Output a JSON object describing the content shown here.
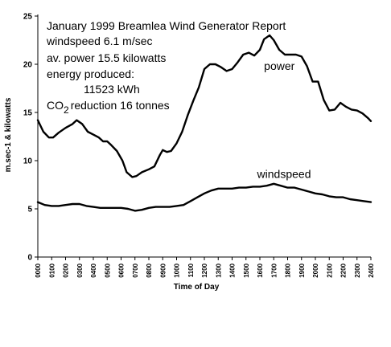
{
  "chart_data": {
    "type": "line",
    "title": "January 1999 Breamlea Wind Generator Report",
    "annotations": [
      "windspeed 6.1 m/sec",
      "av. power 15.5 kilowatts",
      "energy produced:",
      "11523 kWh"
    ],
    "co2_note": {
      "prefix": "CO",
      "subscript": "2",
      "suffix": "reduction 16 tonnes"
    },
    "xlabel": "Time of Day",
    "ylabel": "m.sec-1 & kilowatts",
    "ylim": [
      0,
      25
    ],
    "y_ticks": [
      0,
      5,
      10,
      15,
      20,
      25
    ],
    "x_ticks": [
      "0000",
      "0100",
      "0200",
      "0300",
      "0400",
      "0500",
      "0600",
      "0700",
      "0800",
      "0900",
      "1000",
      "1100",
      "1200",
      "1300",
      "1400",
      "1500",
      "1600",
      "1700",
      "1800",
      "1900",
      "2000",
      "2100",
      "2200",
      "2300",
      "2400"
    ],
    "grid": false,
    "series": [
      {
        "name": "power",
        "points": [
          [
            0,
            14.2
          ],
          [
            0.4,
            13.0
          ],
          [
            0.8,
            12.4
          ],
          [
            1.1,
            12.4
          ],
          [
            1.5,
            12.9
          ],
          [
            2.0,
            13.4
          ],
          [
            2.5,
            13.8
          ],
          [
            2.8,
            14.2
          ],
          [
            3.2,
            13.8
          ],
          [
            3.6,
            13.0
          ],
          [
            4.0,
            12.7
          ],
          [
            4.4,
            12.4
          ],
          [
            4.7,
            12.0
          ],
          [
            5.0,
            12.0
          ],
          [
            5.3,
            11.6
          ],
          [
            5.7,
            11.0
          ],
          [
            6.1,
            10.0
          ],
          [
            6.4,
            8.8
          ],
          [
            6.8,
            8.3
          ],
          [
            7.1,
            8.4
          ],
          [
            7.5,
            8.8
          ],
          [
            8.0,
            9.1
          ],
          [
            8.4,
            9.4
          ],
          [
            8.8,
            10.6
          ],
          [
            9.0,
            11.1
          ],
          [
            9.3,
            10.9
          ],
          [
            9.6,
            11.0
          ],
          [
            10.0,
            11.8
          ],
          [
            10.4,
            13.0
          ],
          [
            10.8,
            14.7
          ],
          [
            11.2,
            16.2
          ],
          [
            11.6,
            17.6
          ],
          [
            12.0,
            19.5
          ],
          [
            12.4,
            20.0
          ],
          [
            12.8,
            20.0
          ],
          [
            13.2,
            19.7
          ],
          [
            13.6,
            19.3
          ],
          [
            14.0,
            19.5
          ],
          [
            14.4,
            20.2
          ],
          [
            14.8,
            21.0
          ],
          [
            15.2,
            21.2
          ],
          [
            15.6,
            20.9
          ],
          [
            16.0,
            21.5
          ],
          [
            16.3,
            22.6
          ],
          [
            16.7,
            23.0
          ],
          [
            17.0,
            22.5
          ],
          [
            17.4,
            21.5
          ],
          [
            17.8,
            21.0
          ],
          [
            18.2,
            21.0
          ],
          [
            18.6,
            21.0
          ],
          [
            19.0,
            20.8
          ],
          [
            19.4,
            19.8
          ],
          [
            19.8,
            18.2
          ],
          [
            20.2,
            18.2
          ],
          [
            20.6,
            16.3
          ],
          [
            21.0,
            15.2
          ],
          [
            21.4,
            15.3
          ],
          [
            21.8,
            16.0
          ],
          [
            22.2,
            15.6
          ],
          [
            22.6,
            15.3
          ],
          [
            23.0,
            15.2
          ],
          [
            23.4,
            14.9
          ],
          [
            23.8,
            14.4
          ],
          [
            24.0,
            14.1
          ]
        ]
      },
      {
        "name": "windspeed",
        "points": [
          [
            0,
            5.7
          ],
          [
            0.5,
            5.4
          ],
          [
            1.0,
            5.3
          ],
          [
            1.5,
            5.3
          ],
          [
            2.0,
            5.4
          ],
          [
            2.5,
            5.5
          ],
          [
            3.0,
            5.5
          ],
          [
            3.5,
            5.3
          ],
          [
            4.0,
            5.2
          ],
          [
            4.5,
            5.1
          ],
          [
            5.0,
            5.1
          ],
          [
            5.5,
            5.1
          ],
          [
            6.0,
            5.1
          ],
          [
            6.5,
            5.0
          ],
          [
            7.0,
            4.8
          ],
          [
            7.5,
            4.9
          ],
          [
            8.0,
            5.1
          ],
          [
            8.5,
            5.2
          ],
          [
            9.0,
            5.2
          ],
          [
            9.5,
            5.2
          ],
          [
            10.0,
            5.3
          ],
          [
            10.5,
            5.4
          ],
          [
            11.0,
            5.8
          ],
          [
            11.5,
            6.2
          ],
          [
            12.0,
            6.6
          ],
          [
            12.5,
            6.9
          ],
          [
            13.0,
            7.1
          ],
          [
            13.5,
            7.1
          ],
          [
            14.0,
            7.1
          ],
          [
            14.5,
            7.2
          ],
          [
            15.0,
            7.2
          ],
          [
            15.5,
            7.3
          ],
          [
            16.0,
            7.3
          ],
          [
            16.5,
            7.4
          ],
          [
            17.0,
            7.6
          ],
          [
            17.5,
            7.4
          ],
          [
            18.0,
            7.2
          ],
          [
            18.5,
            7.2
          ],
          [
            19.0,
            7.0
          ],
          [
            19.5,
            6.8
          ],
          [
            20.0,
            6.6
          ],
          [
            20.5,
            6.5
          ],
          [
            21.0,
            6.3
          ],
          [
            21.5,
            6.2
          ],
          [
            22.0,
            6.2
          ],
          [
            22.5,
            6.0
          ],
          [
            23.0,
            5.9
          ],
          [
            23.5,
            5.8
          ],
          [
            24.0,
            5.7
          ]
        ]
      }
    ]
  }
}
